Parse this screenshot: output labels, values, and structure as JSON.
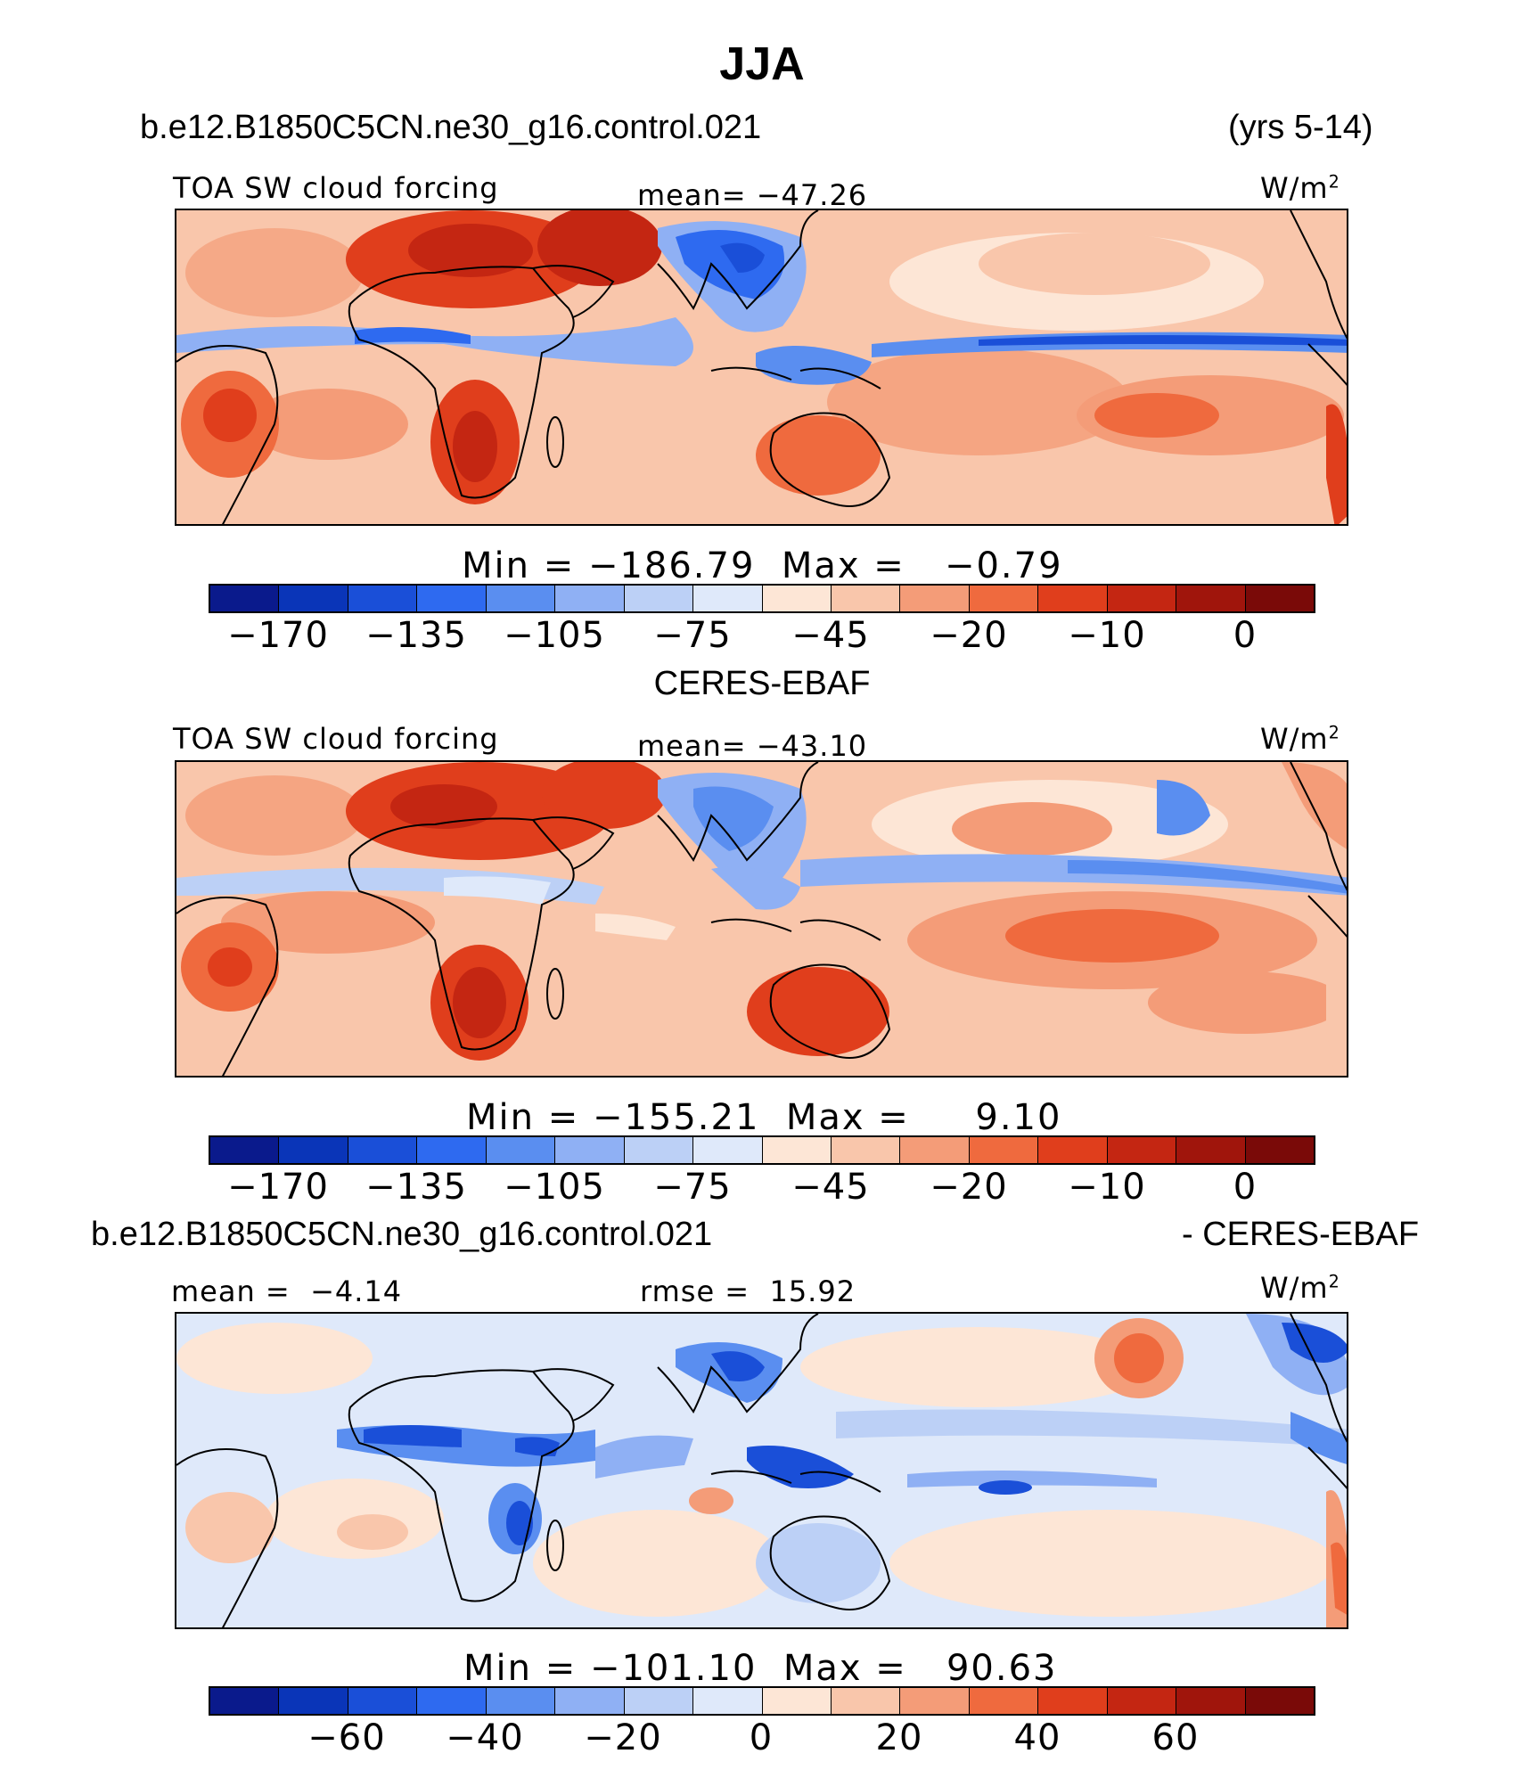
{
  "title": "JJA",
  "header": {
    "case_name": "b.e12.B1850C5CN.ne30_g16.control.021",
    "years": "(yrs 5-14)"
  },
  "panels": [
    {
      "id": "model",
      "caption": "",
      "variable": "TOA SW cloud forcing",
      "mean_label": "mean=",
      "mean_value": "−47.26",
      "units": "W/m",
      "units_exp": "2",
      "min_label": "Min  =",
      "min_value": "−186.79",
      "max_label": "Max  =",
      "max_value": "−0.79",
      "colorbar_ticks": [
        "−170",
        "−135",
        "−105",
        "−75",
        "−45",
        "−20",
        "−10",
        "0"
      ]
    },
    {
      "id": "obs",
      "caption": "CERES-EBAF",
      "variable": "TOA SW cloud forcing",
      "mean_label": "mean=",
      "mean_value": "−43.10",
      "units": "W/m",
      "units_exp": "2",
      "min_label": "Min  =",
      "min_value": "−155.21",
      "max_label": "Max  =",
      "max_value": "9.10",
      "colorbar_ticks": [
        "−170",
        "−135",
        "−105",
        "−75",
        "−45",
        "−20",
        "−10",
        "0"
      ]
    },
    {
      "id": "diff",
      "caption_left": "b.e12.B1850C5CN.ne30_g16.control.021",
      "caption_right": "- CERES-EBAF",
      "mean_label": "mean  =",
      "mean_value": "−4.14",
      "rmse_label": "rmse  =",
      "rmse_value": "15.92",
      "units": "W/m",
      "units_exp": "2",
      "min_label": "Min  =",
      "min_value": "−101.10",
      "max_label": "Max  =",
      "max_value": "90.63",
      "colorbar_ticks": [
        "−60",
        "−40",
        "−20",
        "0",
        "20",
        "40",
        "60"
      ]
    }
  ],
  "colorbar_colors": [
    "#0a1a8c",
    "#0a35b8",
    "#1a4fd8",
    "#2e6af0",
    "#5a8ef0",
    "#8fb0f4",
    "#bcd0f6",
    "#dfe9fa",
    "#fde6d6",
    "#f9c6ab",
    "#f49c78",
    "#ef6a3e",
    "#e03e1c",
    "#c42612",
    "#a0150c",
    "#7a0a08"
  ],
  "colors": {
    "land_outline": "#000000",
    "background": "#ffffff"
  }
}
